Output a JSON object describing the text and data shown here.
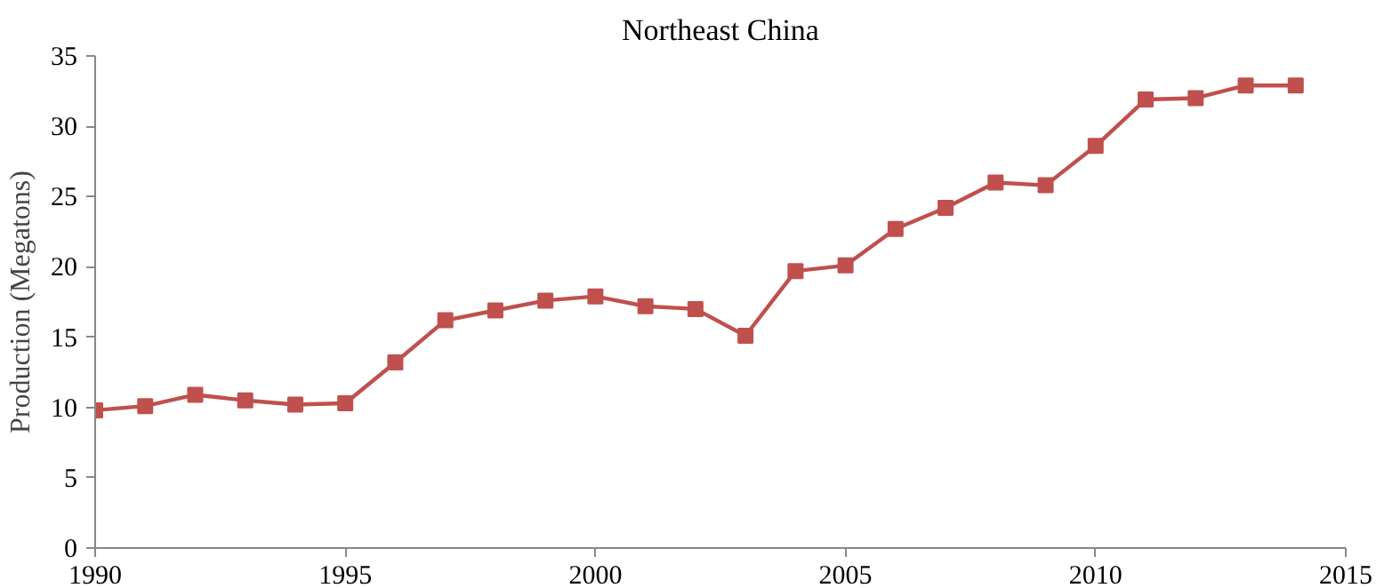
{
  "chart_data": {
    "type": "line",
    "title": "Northeast China",
    "ylabel": "Production (Megatons)",
    "x": [
      1990,
      1991,
      1992,
      1993,
      1994,
      1995,
      1996,
      1997,
      1998,
      1999,
      2000,
      2001,
      2002,
      2003,
      2004,
      2005,
      2006,
      2007,
      2008,
      2009,
      2010,
      2011,
      2012,
      2013,
      2014
    ],
    "series": [
      {
        "color": "#c0504d",
        "values": [
          9.8,
          10.1,
          10.9,
          10.5,
          10.2,
          10.3,
          13.2,
          16.2,
          16.9,
          17.6,
          17.9,
          17.2,
          17.0,
          15.1,
          19.7,
          20.1,
          22.7,
          24.2,
          26.0,
          25.8,
          28.6,
          31.9,
          32.0,
          32.9,
          32.9
        ]
      }
    ],
    "xlim": [
      1990,
      2015
    ],
    "xticks": [
      1990,
      1995,
      2000,
      2005,
      2010,
      2015
    ],
    "ylim": [
      0,
      35
    ],
    "yticks": [
      0,
      5,
      10,
      15,
      20,
      25,
      30,
      35
    ],
    "grid": false,
    "marker": "square",
    "line_style": "solid"
  }
}
